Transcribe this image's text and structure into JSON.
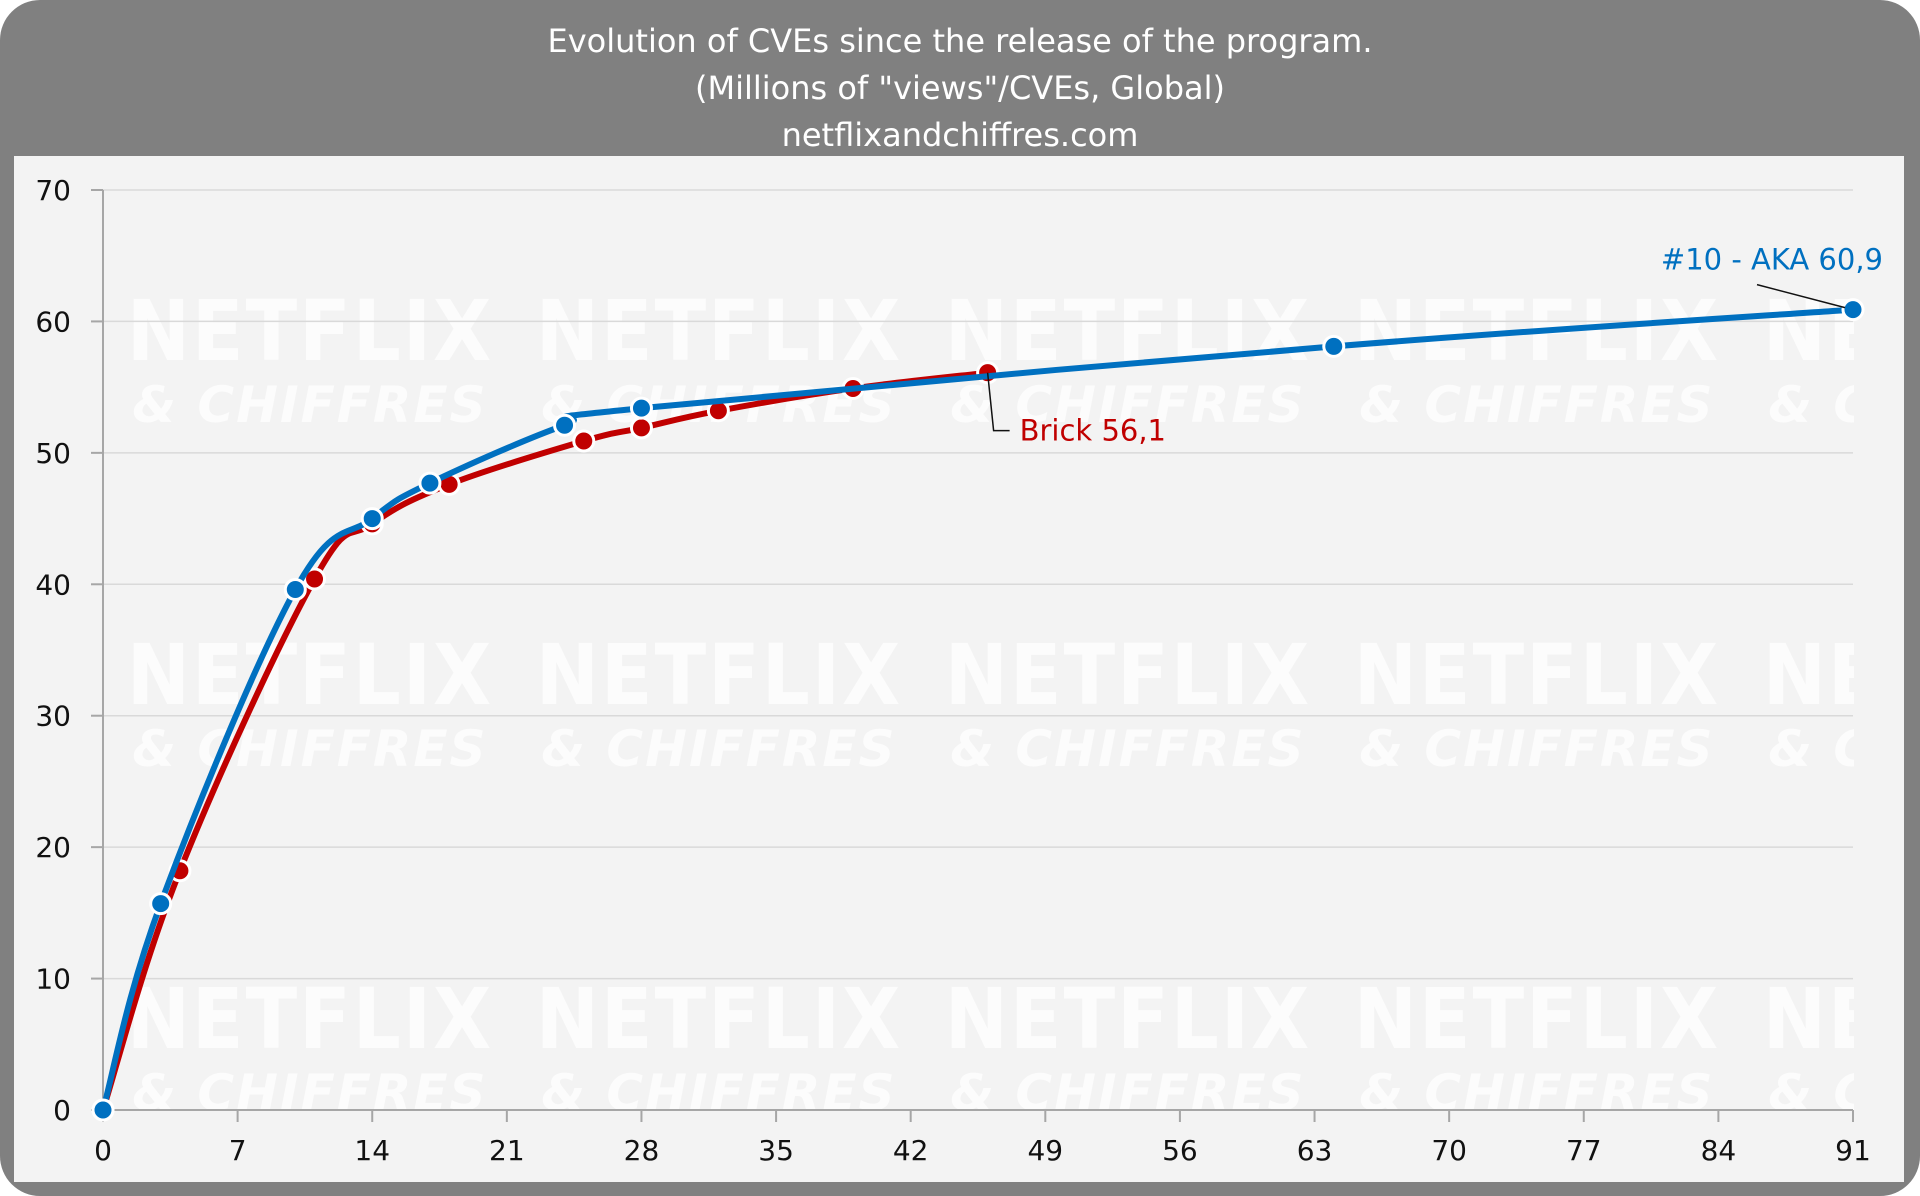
{
  "header": {
    "title": "Evolution of CVEs since the release of the program.",
    "subtitle": "(Millions of \"views\"/CVEs, Global)",
    "source": "netflixandchiffres.com"
  },
  "watermark": {
    "line1": "NETFLIX",
    "line2": "& CHIFFRES"
  },
  "chart_data": {
    "type": "line",
    "title": "Evolution of CVEs since the release of the program.",
    "subtitle": "(Millions of \"views\"/CVEs, Global)",
    "xlabel": "",
    "ylabel": "",
    "xlim": [
      0,
      91
    ],
    "ylim": [
      0,
      70
    ],
    "x_ticks": [
      0,
      7,
      14,
      21,
      28,
      35,
      42,
      49,
      56,
      63,
      70,
      77,
      84,
      91
    ],
    "y_ticks": [
      0,
      10,
      20,
      30,
      40,
      50,
      60,
      70
    ],
    "x_tick_labels": [
      "0",
      "7",
      "14",
      "21",
      "28",
      "35",
      "42",
      "49",
      "56",
      "63",
      "70",
      "77",
      "84",
      "91"
    ],
    "y_tick_labels": [
      "0",
      "10",
      "20",
      "30",
      "40",
      "50",
      "60",
      "70"
    ],
    "grid": true,
    "legend": "none",
    "series": [
      {
        "color": "#c00000",
        "points": [
          [
            0,
            0
          ],
          [
            4,
            18.2
          ],
          [
            11,
            40.4
          ],
          [
            14,
            44.6
          ],
          [
            18,
            47.6
          ],
          [
            25,
            50.9
          ],
          [
            28,
            51.9
          ],
          [
            32,
            53.2
          ],
          [
            39,
            54.9
          ],
          [
            46,
            56.1
          ]
        ],
        "annotation": "Brick 56,1"
      },
      {
        "color": "#0070c0",
        "points": [
          [
            0,
            0
          ],
          [
            3,
            15.7
          ],
          [
            10,
            39.6
          ],
          [
            14,
            45.0
          ],
          [
            17,
            47.7
          ],
          [
            24,
            52.1
          ],
          [
            28,
            53.4
          ],
          [
            64,
            58.1
          ],
          [
            91,
            60.9
          ]
        ],
        "annotation": "#10 - AKA 60,9"
      }
    ]
  }
}
